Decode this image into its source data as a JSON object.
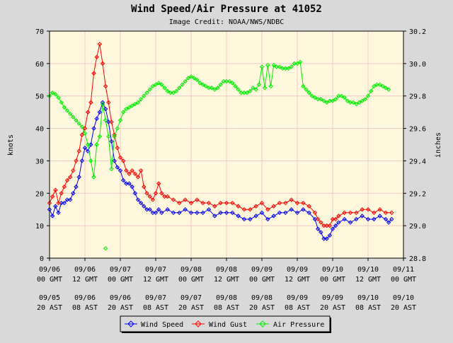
{
  "chart_data": {
    "type": "line",
    "title": "Wind Speed/Air Pressure at 41052",
    "subtitle": "Image Credit: NOAA/NWS/NDBC",
    "ylabel_left": "knots",
    "ylabel_right": "inches",
    "ylim_left": [
      0,
      70
    ],
    "ylim_right": [
      28.8,
      30.2
    ],
    "yticks_left": [
      "0",
      "10",
      "20",
      "30",
      "40",
      "50",
      "60",
      "70"
    ],
    "yticks_right": [
      "28.8",
      "29.0",
      "29.2",
      "29.4",
      "29.6",
      "29.8",
      "30.0",
      "30.2"
    ],
    "xlim": [
      0,
      120
    ],
    "grid": true,
    "legend_position": "bottom",
    "x_ticks": [
      {
        "x": 0,
        "gmt": [
          "09/06",
          "00 GMT"
        ],
        "ast": [
          "09/05",
          "20 AST"
        ]
      },
      {
        "x": 12,
        "gmt": [
          "09/06",
          "12 GMT"
        ],
        "ast": [
          "09/06",
          "08 AST"
        ]
      },
      {
        "x": 24,
        "gmt": [
          "09/07",
          "00 GMT"
        ],
        "ast": [
          "09/06",
          "20 AST"
        ]
      },
      {
        "x": 36,
        "gmt": [
          "09/07",
          "12 GMT"
        ],
        "ast": [
          "09/07",
          "08 AST"
        ]
      },
      {
        "x": 48,
        "gmt": [
          "09/08",
          "00 GMT"
        ],
        "ast": [
          "09/07",
          "20 AST"
        ]
      },
      {
        "x": 60,
        "gmt": [
          "09/08",
          "12 GMT"
        ],
        "ast": [
          "09/08",
          "08 AST"
        ]
      },
      {
        "x": 72,
        "gmt": [
          "09/09",
          "00 GMT"
        ],
        "ast": [
          "09/08",
          "20 AST"
        ]
      },
      {
        "x": 84,
        "gmt": [
          "09/09",
          "12 GMT"
        ],
        "ast": [
          "09/09",
          "08 AST"
        ]
      },
      {
        "x": 96,
        "gmt": [
          "09/10",
          "00 GMT"
        ],
        "ast": [
          "09/09",
          "20 AST"
        ]
      },
      {
        "x": 108,
        "gmt": [
          "09/10",
          "12 GMT"
        ],
        "ast": [
          "09/10",
          "08 AST"
        ]
      },
      {
        "x": 120,
        "gmt": [
          "09/11",
          "00 GMT"
        ],
        "ast": [
          "09/10",
          "20 AST"
        ]
      }
    ],
    "series": [
      {
        "name": "Wind Speed",
        "axis": "left",
        "color": "#0000ff",
        "points": [
          [
            0,
            15
          ],
          [
            1,
            13
          ],
          [
            2,
            16
          ],
          [
            3,
            14
          ],
          [
            4,
            17
          ],
          [
            5,
            17
          ],
          [
            6,
            18
          ],
          [
            7,
            18
          ],
          [
            8,
            20
          ],
          [
            9,
            22
          ],
          [
            10,
            25
          ],
          [
            11,
            30
          ],
          [
            12,
            34
          ],
          [
            13,
            33
          ],
          [
            14,
            35
          ],
          [
            15,
            40
          ],
          [
            16,
            43
          ],
          [
            17,
            45
          ],
          [
            18,
            48
          ],
          [
            19,
            46
          ],
          [
            20,
            42
          ],
          [
            21,
            36
          ],
          [
            22,
            30
          ],
          [
            23,
            28
          ],
          [
            24,
            27
          ],
          [
            25,
            24
          ],
          [
            26,
            23
          ],
          [
            27,
            23
          ],
          [
            28,
            22
          ],
          [
            29,
            20
          ],
          [
            30,
            18
          ],
          [
            31,
            17
          ],
          [
            32,
            16
          ],
          [
            33,
            15
          ],
          [
            34,
            15
          ],
          [
            35,
            14
          ],
          [
            36,
            14
          ],
          [
            37,
            15
          ],
          [
            38,
            14
          ],
          [
            40,
            15
          ],
          [
            42,
            14
          ],
          [
            44,
            14
          ],
          [
            46,
            15
          ],
          [
            48,
            14
          ],
          [
            50,
            14
          ],
          [
            52,
            14
          ],
          [
            54,
            15
          ],
          [
            56,
            13
          ],
          [
            58,
            14
          ],
          [
            60,
            14
          ],
          [
            62,
            14
          ],
          [
            64,
            13
          ],
          [
            66,
            12
          ],
          [
            68,
            12
          ],
          [
            70,
            13
          ],
          [
            72,
            14
          ],
          [
            74,
            12
          ],
          [
            76,
            13
          ],
          [
            78,
            14
          ],
          [
            80,
            14
          ],
          [
            82,
            15
          ],
          [
            84,
            14
          ],
          [
            86,
            15
          ],
          [
            88,
            14
          ],
          [
            90,
            12
          ],
          [
            91,
            9
          ],
          [
            92,
            8
          ],
          [
            93,
            6
          ],
          [
            94,
            6
          ],
          [
            95,
            7
          ],
          [
            96,
            9
          ],
          [
            97,
            10
          ],
          [
            98,
            11
          ],
          [
            100,
            12
          ],
          [
            102,
            11
          ],
          [
            104,
            12
          ],
          [
            106,
            13
          ],
          [
            108,
            12
          ],
          [
            110,
            12
          ],
          [
            112,
            13
          ],
          [
            114,
            12
          ],
          [
            115,
            11
          ],
          [
            116,
            12
          ]
        ]
      },
      {
        "name": "Wind Gust",
        "axis": "left",
        "color": "#ff0000",
        "points": [
          [
            0,
            17
          ],
          [
            1,
            19
          ],
          [
            2,
            21
          ],
          [
            3,
            17
          ],
          [
            4,
            20
          ],
          [
            5,
            22
          ],
          [
            6,
            24
          ],
          [
            7,
            25
          ],
          [
            8,
            27
          ],
          [
            9,
            30
          ],
          [
            10,
            33
          ],
          [
            11,
            38
          ],
          [
            12,
            40
          ],
          [
            13,
            45
          ],
          [
            14,
            48
          ],
          [
            15,
            57
          ],
          [
            16,
            62
          ],
          [
            17,
            66
          ],
          [
            18,
            60
          ],
          [
            19,
            53
          ],
          [
            20,
            48
          ],
          [
            21,
            42
          ],
          [
            22,
            38
          ],
          [
            23,
            34
          ],
          [
            24,
            31
          ],
          [
            25,
            30
          ],
          [
            26,
            27
          ],
          [
            27,
            26
          ],
          [
            28,
            27
          ],
          [
            29,
            26
          ],
          [
            30,
            25
          ],
          [
            31,
            27
          ],
          [
            32,
            22
          ],
          [
            33,
            20
          ],
          [
            34,
            19
          ],
          [
            35,
            18
          ],
          [
            36,
            20
          ],
          [
            37,
            23
          ],
          [
            38,
            20
          ],
          [
            39,
            19
          ],
          [
            40,
            19
          ],
          [
            42,
            18
          ],
          [
            44,
            17
          ],
          [
            46,
            18
          ],
          [
            48,
            17
          ],
          [
            50,
            18
          ],
          [
            52,
            17
          ],
          [
            54,
            17
          ],
          [
            56,
            16
          ],
          [
            58,
            17
          ],
          [
            60,
            17
          ],
          [
            62,
            17
          ],
          [
            64,
            16
          ],
          [
            66,
            15
          ],
          [
            68,
            15
          ],
          [
            70,
            16
          ],
          [
            72,
            17
          ],
          [
            74,
            15
          ],
          [
            76,
            16
          ],
          [
            78,
            17
          ],
          [
            80,
            17
          ],
          [
            82,
            18
          ],
          [
            84,
            17
          ],
          [
            86,
            17
          ],
          [
            88,
            16
          ],
          [
            90,
            14
          ],
          [
            91,
            12
          ],
          [
            92,
            11
          ],
          [
            93,
            10
          ],
          [
            94,
            10
          ],
          [
            95,
            10
          ],
          [
            96,
            12
          ],
          [
            97,
            12
          ],
          [
            98,
            13
          ],
          [
            100,
            14
          ],
          [
            102,
            14
          ],
          [
            104,
            14
          ],
          [
            106,
            15
          ],
          [
            108,
            15
          ],
          [
            110,
            14
          ],
          [
            112,
            15
          ],
          [
            114,
            14
          ],
          [
            116,
            14
          ]
        ]
      },
      {
        "name": "Air Pressure",
        "axis": "right",
        "color": "#00ee00",
        "points": [
          [
            0,
            29.8
          ],
          [
            1,
            29.82
          ],
          [
            2,
            29.81
          ],
          [
            3,
            29.79
          ],
          [
            4,
            29.76
          ],
          [
            5,
            29.73
          ],
          [
            6,
            29.71
          ],
          [
            7,
            29.69
          ],
          [
            8,
            29.67
          ],
          [
            9,
            29.65
          ],
          [
            10,
            29.63
          ],
          [
            11,
            29.61
          ],
          [
            12,
            29.57
          ],
          [
            13,
            29.5
          ],
          [
            14,
            29.4
          ],
          [
            15,
            29.3
          ],
          [
            16,
            29.5
          ],
          [
            17,
            29.55
          ],
          [
            18,
            29.75
          ],
          [
            19,
            29.65
          ],
          [
            20,
            29.55
          ],
          [
            21,
            29.35
          ],
          [
            22,
            29.55
          ],
          [
            23,
            29.6
          ],
          [
            24,
            29.65
          ],
          [
            25,
            29.7
          ],
          [
            26,
            29.72
          ],
          [
            27,
            29.73
          ],
          [
            28,
            29.74
          ],
          [
            29,
            29.75
          ],
          [
            30,
            29.76
          ],
          [
            31,
            29.78
          ],
          [
            32,
            29.8
          ],
          [
            33,
            29.82
          ],
          [
            34,
            29.84
          ],
          [
            35,
            29.86
          ],
          [
            36,
            29.87
          ],
          [
            37,
            29.88
          ],
          [
            38,
            29.87
          ],
          [
            39,
            29.85
          ],
          [
            40,
            29.83
          ],
          [
            41,
            29.82
          ],
          [
            42,
            29.82
          ],
          [
            43,
            29.83
          ],
          [
            44,
            29.85
          ],
          [
            45,
            29.87
          ],
          [
            46,
            29.89
          ],
          [
            47,
            29.91
          ],
          [
            48,
            29.92
          ],
          [
            49,
            29.91
          ],
          [
            50,
            29.9
          ],
          [
            51,
            29.88
          ],
          [
            52,
            29.87
          ],
          [
            53,
            29.86
          ],
          [
            54,
            29.85
          ],
          [
            55,
            29.85
          ],
          [
            56,
            29.84
          ],
          [
            57,
            29.85
          ],
          [
            58,
            29.87
          ],
          [
            59,
            29.89
          ],
          [
            60,
            29.89
          ],
          [
            61,
            29.89
          ],
          [
            62,
            29.88
          ],
          [
            63,
            29.86
          ],
          [
            64,
            29.84
          ],
          [
            65,
            29.82
          ],
          [
            66,
            29.82
          ],
          [
            67,
            29.82
          ],
          [
            68,
            29.83
          ],
          [
            69,
            29.85
          ],
          [
            70,
            29.84
          ],
          [
            71,
            29.87
          ],
          [
            72,
            29.98
          ],
          [
            73,
            29.85
          ],
          [
            74,
            29.99
          ],
          [
            75,
            29.86
          ],
          [
            76,
            29.99
          ],
          [
            77,
            29.98
          ],
          [
            78,
            29.98
          ],
          [
            79,
            29.97
          ],
          [
            80,
            29.97
          ],
          [
            81,
            29.97
          ],
          [
            82,
            29.98
          ],
          [
            83,
            30.0
          ],
          [
            84,
            30.0
          ],
          [
            85,
            30.01
          ],
          [
            86,
            29.86
          ],
          [
            87,
            29.84
          ],
          [
            88,
            29.82
          ],
          [
            89,
            29.8
          ],
          [
            90,
            29.79
          ],
          [
            91,
            29.78
          ],
          [
            92,
            29.78
          ],
          [
            93,
            29.77
          ],
          [
            94,
            29.76
          ],
          [
            95,
            29.77
          ],
          [
            96,
            29.77
          ],
          [
            97,
            29.78
          ],
          [
            98,
            29.8
          ],
          [
            99,
            29.8
          ],
          [
            100,
            29.79
          ],
          [
            101,
            29.77
          ],
          [
            102,
            29.76
          ],
          [
            103,
            29.76
          ],
          [
            104,
            29.75
          ],
          [
            105,
            29.76
          ],
          [
            106,
            29.77
          ],
          [
            107,
            29.78
          ],
          [
            108,
            29.8
          ],
          [
            109,
            29.83
          ],
          [
            110,
            29.86
          ],
          [
            111,
            29.87
          ],
          [
            112,
            29.87
          ],
          [
            113,
            29.86
          ],
          [
            114,
            29.85
          ],
          [
            115,
            29.84
          ]
        ]
      }
    ],
    "outliers": [
      {
        "series": "Air Pressure",
        "x": 19,
        "y": 28.86
      }
    ]
  },
  "legend": {
    "wind_speed_label": "Wind Speed",
    "wind_gust_label": "Wind Gust",
    "air_pressure_label": "Air Pressure"
  },
  "colors": {
    "background": "#d9d9d9",
    "plot_background": "#fff8dc",
    "grid": "#f0c8c8"
  }
}
